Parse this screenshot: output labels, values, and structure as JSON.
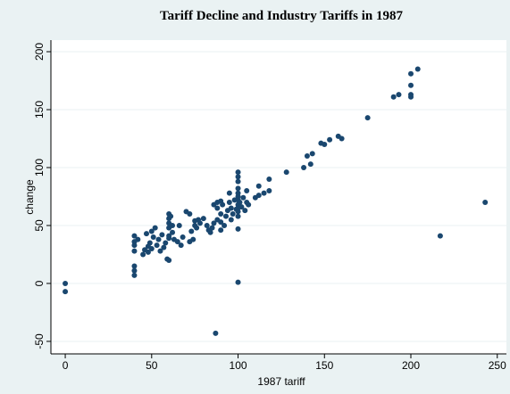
{
  "chart_data": {
    "type": "scatter",
    "title": "Tariff Decline and Industry Tariffs in 1987",
    "x_label": "1987 tariff",
    "y_label": "change",
    "color": "#1a476f",
    "grid": true,
    "xlim": [
      -8.3,
      255.3
    ],
    "ylim": [
      -60.8,
      210
    ],
    "xticks": [
      0,
      50,
      100,
      150,
      200,
      250
    ],
    "yticks": [
      -50,
      0,
      50,
      100,
      150,
      200
    ],
    "x": [
      0,
      0,
      40,
      40,
      40,
      40,
      40,
      40,
      40,
      42,
      45,
      46,
      47,
      48,
      48,
      49,
      50,
      50,
      51,
      52,
      53,
      54,
      55,
      56,
      57,
      58,
      59,
      60,
      60,
      60,
      60,
      60,
      60,
      60,
      61,
      62,
      62,
      63,
      65,
      66,
      67,
      68,
      70,
      72,
      72,
      73,
      74,
      75,
      75,
      76,
      77,
      78,
      80,
      82,
      83,
      84,
      85,
      86,
      86,
      87,
      88,
      88,
      88,
      90,
      90,
      90,
      90,
      91,
      92,
      93,
      94,
      95,
      95,
      96,
      96,
      97,
      98,
      99,
      100,
      100,
      100,
      100,
      100,
      100,
      100,
      100,
      100,
      100,
      100,
      100,
      100,
      101,
      102,
      103,
      104,
      105,
      105,
      106,
      110,
      112,
      112,
      115,
      118,
      118,
      128,
      138,
      140,
      142,
      143,
      148,
      150,
      153,
      158,
      160,
      175,
      190,
      193,
      200,
      200,
      200,
      200,
      204,
      217,
      243
    ],
    "y": [
      0,
      -7,
      41,
      36,
      33,
      28,
      15,
      11,
      7,
      38,
      25,
      29,
      43,
      27,
      32,
      35,
      30,
      45,
      40,
      48,
      33,
      38,
      28,
      42,
      31,
      35,
      21,
      20,
      39,
      41,
      48,
      52,
      56,
      60,
      58,
      50,
      44,
      38,
      36,
      50,
      33,
      40,
      62,
      60,
      36,
      45,
      38,
      50,
      54,
      48,
      55,
      52,
      56,
      50,
      46,
      44,
      48,
      52,
      68,
      -43,
      55,
      65,
      70,
      46,
      53,
      60,
      71,
      68,
      50,
      58,
      63,
      70,
      78,
      65,
      55,
      60,
      72,
      64,
      96,
      92,
      88,
      82,
      78,
      75,
      72,
      68,
      65,
      62,
      58,
      47,
      1,
      70,
      66,
      74,
      63,
      70,
      80,
      68,
      74,
      76,
      84,
      78,
      80,
      90,
      96,
      100,
      110,
      103,
      112,
      121,
      120,
      124,
      127,
      125,
      143,
      161,
      163,
      181,
      171,
      163,
      161,
      185,
      41,
      70
    ]
  }
}
